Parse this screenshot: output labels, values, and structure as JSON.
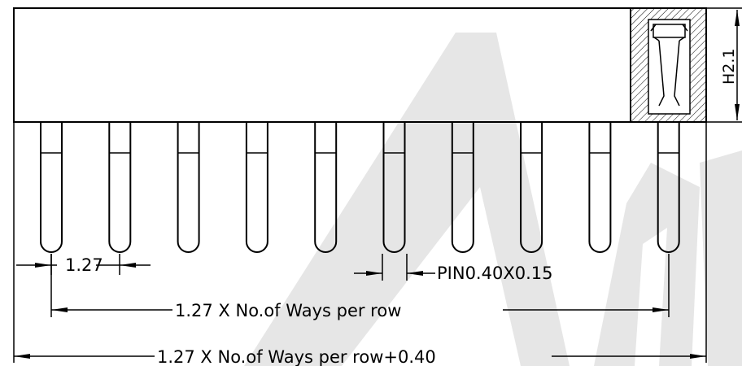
{
  "drawing": {
    "pin_count": 10,
    "dim_pitch": "1.27",
    "dim_pin": "PIN0.40X0.15",
    "dim_row": "1.27 X No.of Ways per row",
    "dim_overall": "1.27 X No.of Ways per row+0.40",
    "dim_height": "H2.1"
  },
  "watermark": {
    "color": "#e6e6e6"
  }
}
